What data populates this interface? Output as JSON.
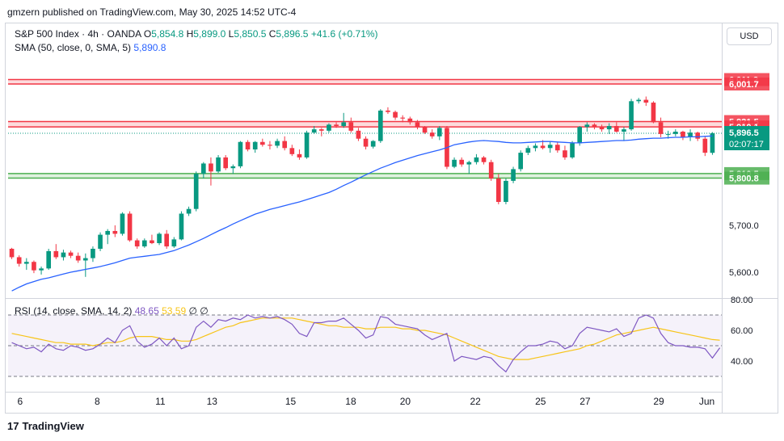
{
  "header": {
    "publisher": "gmzern published on TradingView.com, May 30, 2025 14:52 UTC-4"
  },
  "legend": {
    "symbol": "S&P 500 Index · 4h · OANDA",
    "o_label": "O",
    "o_value": "5,854.8",
    "h_label": "H",
    "h_value": "5,899.0",
    "l_label": "L",
    "l_value": "5,850.5",
    "c_label": "C",
    "c_value": "5,896.5",
    "change": "+41.6 (+0.71%)",
    "sma_label": "SMA (50, close, 0, SMA, 5)",
    "sma_value": "5,890.8",
    "rsi_label": "RSI (14, close, SMA, 14, 2)",
    "rsi_value": "48.65",
    "rsi_ma_value": "53.59",
    "rsi_extra": "∅ ∅"
  },
  "currency_button": "USD",
  "footer": {
    "brand": "TradingView"
  },
  "colors": {
    "up": "#089981",
    "down": "#f23645",
    "sma": "#2962ff",
    "rsi": "#7e57c2",
    "rsi_ma": "#f7c417",
    "resistance": "#f23645",
    "support": "#4caf50"
  },
  "chart_data": [
    {
      "type": "candlestick",
      "title": "S&P 500 Index · 4h · OANDA",
      "x_tick_labels": [
        "6",
        "8",
        "11",
        "13",
        "15",
        "18",
        "20",
        "22",
        "25",
        "27",
        "29",
        "Jun"
      ],
      "y_tick_labels": [
        "5,600.0",
        "5,700.0"
      ],
      "ylim": [
        5550,
        6050
      ],
      "grid": false,
      "candles": [
        [
          5650,
          5652,
          5628,
          5632
        ],
        [
          5632,
          5636,
          5612,
          5618
        ],
        [
          5618,
          5630,
          5605,
          5622
        ],
        [
          5622,
          5625,
          5598,
          5604
        ],
        [
          5604,
          5612,
          5595,
          5608
        ],
        [
          5608,
          5650,
          5605,
          5645
        ],
        [
          5645,
          5660,
          5628,
          5632
        ],
        [
          5632,
          5648,
          5625,
          5642
        ],
        [
          5642,
          5646,
          5630,
          5635
        ],
        [
          5635,
          5642,
          5620,
          5625
        ],
        [
          5625,
          5640,
          5590,
          5630
        ],
        [
          5630,
          5655,
          5622,
          5650
        ],
        [
          5650,
          5685,
          5645,
          5680
        ],
        [
          5680,
          5692,
          5660,
          5688
        ],
        [
          5688,
          5700,
          5675,
          5682
        ],
        [
          5682,
          5728,
          5678,
          5725
        ],
        [
          5725,
          5730,
          5665,
          5668
        ],
        [
          5668,
          5672,
          5650,
          5655
        ],
        [
          5655,
          5672,
          5652,
          5668
        ],
        [
          5668,
          5680,
          5660,
          5662
        ],
        [
          5662,
          5685,
          5658,
          5682
        ],
        [
          5682,
          5690,
          5650,
          5655
        ],
        [
          5655,
          5675,
          5652,
          5670
        ],
        [
          5670,
          5730,
          5668,
          5725
        ],
        [
          5725,
          5740,
          5720,
          5735
        ],
        [
          5735,
          5815,
          5730,
          5810
        ],
        [
          5810,
          5835,
          5800,
          5832
        ],
        [
          5832,
          5845,
          5785,
          5815
        ],
        [
          5815,
          5850,
          5812,
          5845
        ],
        [
          5845,
          5850,
          5818,
          5822
        ],
        [
          5822,
          5830,
          5810,
          5826
        ],
        [
          5826,
          5880,
          5822,
          5878
        ],
        [
          5878,
          5882,
          5858,
          5862
        ],
        [
          5862,
          5880,
          5855,
          5878
        ],
        [
          5878,
          5885,
          5868,
          5872
        ],
        [
          5872,
          5880,
          5862,
          5870
        ],
        [
          5870,
          5885,
          5865,
          5880
        ],
        [
          5880,
          5890,
          5860,
          5865
        ],
        [
          5865,
          5872,
          5848,
          5852
        ],
        [
          5852,
          5862,
          5840,
          5845
        ],
        [
          5845,
          5902,
          5842,
          5898
        ],
        [
          5898,
          5912,
          5895,
          5905
        ],
        [
          5905,
          5908,
          5890,
          5902
        ],
        [
          5902,
          5918,
          5898,
          5915
        ],
        [
          5915,
          5920,
          5908,
          5912
        ],
        [
          5912,
          5940,
          5908,
          5920
        ],
        [
          5920,
          5930,
          5898,
          5902
        ],
        [
          5902,
          5908,
          5880,
          5885
        ],
        [
          5885,
          5890,
          5862,
          5868
        ],
        [
          5868,
          5882,
          5864,
          5880
        ],
        [
          5880,
          5948,
          5876,
          5945
        ],
        [
          5945,
          5952,
          5938,
          5942
        ],
        [
          5942,
          5945,
          5925,
          5930
        ],
        [
          5930,
          5935,
          5920,
          5928
        ],
        [
          5928,
          5932,
          5915,
          5920
        ],
        [
          5920,
          5925,
          5905,
          5910
        ],
        [
          5910,
          5912,
          5895,
          5898
        ],
        [
          5898,
          5905,
          5885,
          5890
        ],
        [
          5890,
          5912,
          5882,
          5908
        ],
        [
          5908,
          5912,
          5820,
          5825
        ],
        [
          5825,
          5845,
          5822,
          5840
        ],
        [
          5840,
          5845,
          5825,
          5830
        ],
        [
          5830,
          5838,
          5810,
          5835
        ],
        [
          5835,
          5852,
          5830,
          5845
        ],
        [
          5845,
          5848,
          5830,
          5835
        ],
        [
          5835,
          5840,
          5795,
          5800
        ],
        [
          5800,
          5810,
          5745,
          5750
        ],
        [
          5750,
          5800,
          5745,
          5795
        ],
        [
          5795,
          5825,
          5790,
          5820
        ],
        [
          5820,
          5860,
          5815,
          5855
        ],
        [
          5855,
          5870,
          5850,
          5865
        ],
        [
          5865,
          5875,
          5858,
          5870
        ],
        [
          5870,
          5882,
          5862,
          5865
        ],
        [
          5865,
          5880,
          5855,
          5872
        ],
        [
          5872,
          5878,
          5855,
          5860
        ],
        [
          5860,
          5870,
          5840,
          5845
        ],
        [
          5845,
          5880,
          5842,
          5875
        ],
        [
          5875,
          5912,
          5870,
          5910
        ],
        [
          5910,
          5920,
          5900,
          5915
        ],
        [
          5915,
          5918,
          5905,
          5910
        ],
        [
          5910,
          5915,
          5900,
          5905
        ],
        [
          5905,
          5918,
          5895,
          5912
        ],
        [
          5912,
          5920,
          5898,
          5900
        ],
        [
          5900,
          5910,
          5880,
          5905
        ],
        [
          5905,
          5970,
          5902,
          5965
        ],
        [
          5965,
          5972,
          5960,
          5968
        ],
        [
          5968,
          5975,
          5955,
          5962
        ],
        [
          5962,
          5965,
          5918,
          5920
        ],
        [
          5920,
          5930,
          5888,
          5895
        ],
        [
          5895,
          5902,
          5885,
          5895
        ],
        [
          5895,
          5905,
          5890,
          5900
        ],
        [
          5900,
          5902,
          5882,
          5888
        ],
        [
          5888,
          5905,
          5880,
          5898
        ],
        [
          5898,
          5900,
          5880,
          5885
        ],
        [
          5885,
          5890,
          5848,
          5855
        ],
        [
          5854.8,
          5899.0,
          5850.5,
          5896.5
        ]
      ],
      "sma_values": [
        5560,
        5568,
        5575,
        5580,
        5585,
        5588,
        5592,
        5596,
        5600,
        5603,
        5606,
        5609,
        5612,
        5616,
        5620,
        5625,
        5630,
        5632,
        5634,
        5636,
        5638,
        5642,
        5646,
        5652,
        5658,
        5665,
        5672,
        5680,
        5688,
        5695,
        5703,
        5710,
        5717,
        5724,
        5729,
        5734,
        5738,
        5742,
        5746,
        5750,
        5755,
        5760,
        5765,
        5770,
        5777,
        5785,
        5792,
        5800,
        5808,
        5815,
        5822,
        5828,
        5834,
        5839,
        5844,
        5849,
        5853,
        5857,
        5861,
        5866,
        5872,
        5875,
        5878,
        5880,
        5881,
        5880,
        5879,
        5877,
        5876,
        5876,
        5877,
        5878,
        5879,
        5879,
        5878,
        5877,
        5876,
        5876,
        5877,
        5878,
        5879,
        5880,
        5881,
        5881,
        5882,
        5884,
        5885,
        5886,
        5886,
        5887,
        5888,
        5888,
        5889,
        5889,
        5890,
        5890.8
      ],
      "levels": [
        {
          "label": "6,011.2",
          "value": 6011.2,
          "kind": "resistance"
        },
        {
          "label": "6,001.7",
          "value": 6001.7,
          "kind": "resistance"
        },
        {
          "label": "5,921.5",
          "value": 5921.5,
          "kind": "resistance"
        },
        {
          "label": "5,910.1",
          "value": 5910.1,
          "kind": "resistance"
        },
        {
          "label": "5,810.5",
          "value": 5810.5,
          "kind": "support"
        },
        {
          "label": "5,800.8",
          "value": 5800.8,
          "kind": "support"
        }
      ],
      "last_price": {
        "label": "5,896.5",
        "countdown": "02:07:17",
        "value": 5896.5
      }
    },
    {
      "type": "line",
      "title": "RSI (14, close, SMA, 14, 2)",
      "y_tick_labels": [
        "80.00",
        "60.00",
        "40.00"
      ],
      "ylim": [
        20,
        80
      ],
      "band": [
        30,
        70
      ],
      "midline": 50,
      "rsi_values": [
        52,
        50,
        48,
        49,
        46,
        51,
        48,
        47,
        50,
        49,
        47,
        48,
        51,
        55,
        52,
        60,
        63,
        53,
        49,
        51,
        55,
        50,
        55,
        48,
        50,
        62,
        66,
        62,
        67,
        66,
        68,
        67,
        70,
        68,
        69,
        68,
        69,
        67,
        64,
        58,
        56,
        65,
        65,
        66,
        66,
        68,
        64,
        60,
        55,
        57,
        69,
        68,
        64,
        63,
        62,
        61,
        57,
        54,
        56,
        58,
        40,
        43,
        42,
        41,
        43,
        42,
        37,
        33,
        41,
        46,
        50,
        50,
        51,
        53,
        52,
        48,
        50,
        58,
        62,
        61,
        60,
        59,
        61,
        56,
        58,
        68,
        70,
        68,
        58,
        52,
        50,
        50,
        49,
        49,
        48,
        42,
        48.65
      ],
      "rsi_ma_values": [
        58,
        57,
        56,
        55,
        54,
        53,
        52,
        52,
        51,
        51,
        51,
        50,
        51,
        52,
        52,
        53,
        55,
        56,
        56,
        56,
        55,
        54,
        54,
        53,
        53,
        54,
        56,
        58,
        60,
        62,
        63,
        65,
        66,
        67,
        68,
        68,
        68,
        68,
        68,
        67,
        66,
        65,
        64,
        63,
        63,
        62,
        62,
        62,
        61,
        61,
        62,
        62,
        62,
        61,
        61,
        60,
        60,
        59,
        58,
        57,
        55,
        53,
        51,
        49,
        47,
        45,
        43,
        42,
        41,
        41,
        41,
        42,
        43,
        44,
        45,
        46,
        47,
        48,
        50,
        51,
        53,
        55,
        57,
        58,
        59,
        60,
        61,
        62,
        61,
        60,
        59,
        58,
        57,
        56,
        55,
        54,
        53.59
      ]
    }
  ]
}
